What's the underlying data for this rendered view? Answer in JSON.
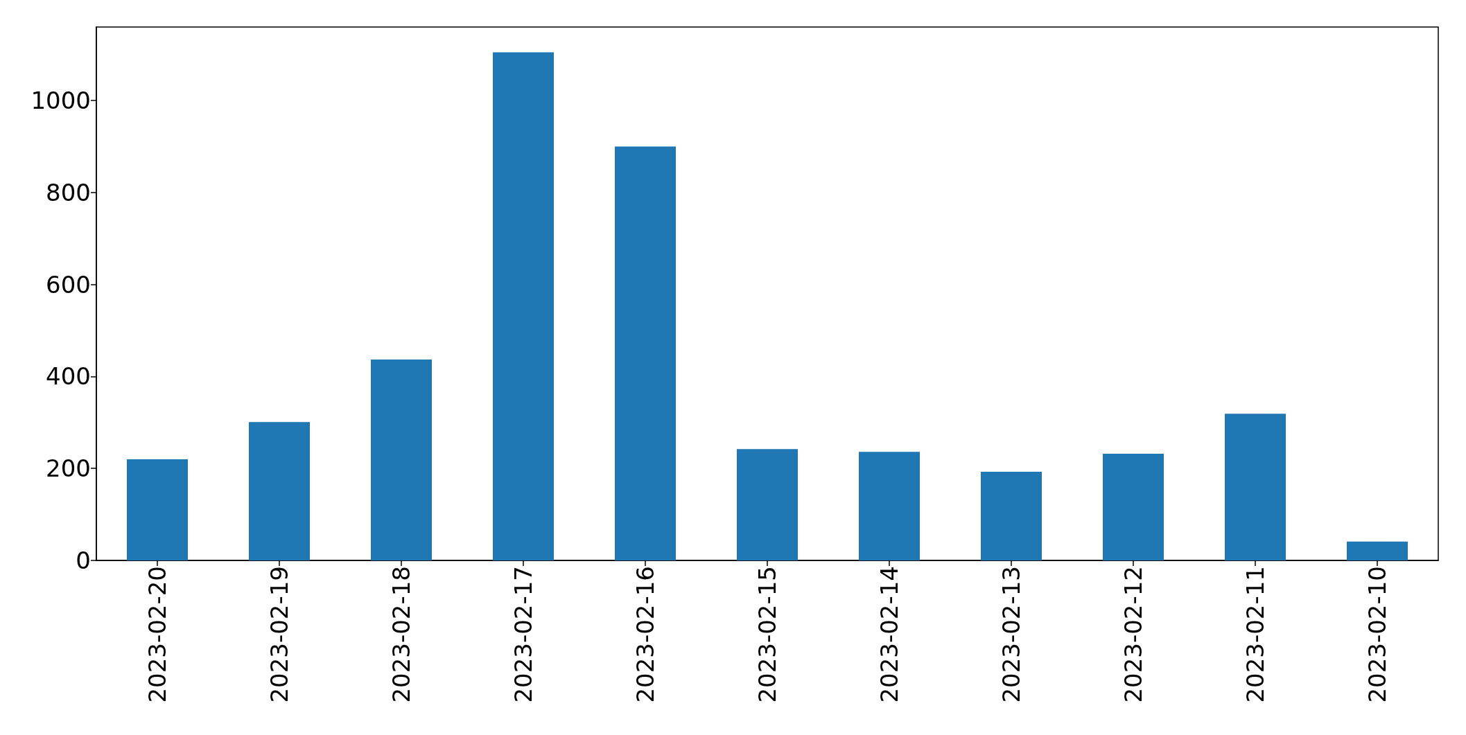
{
  "chart_data": {
    "type": "bar",
    "categories": [
      "2023-02-20",
      "2023-02-19",
      "2023-02-18",
      "2023-02-17",
      "2023-02-16",
      "2023-02-15",
      "2023-02-14",
      "2023-02-13",
      "2023-02-12",
      "2023-02-11",
      "2023-02-10"
    ],
    "values": [
      220,
      301,
      437,
      1105,
      900,
      242,
      236,
      193,
      232,
      319,
      41
    ],
    "color": "#1f77b4",
    "ylim": [
      0,
      1160
    ],
    "yticks": [
      0,
      200,
      400,
      600,
      800,
      1000
    ],
    "grid": false
  }
}
